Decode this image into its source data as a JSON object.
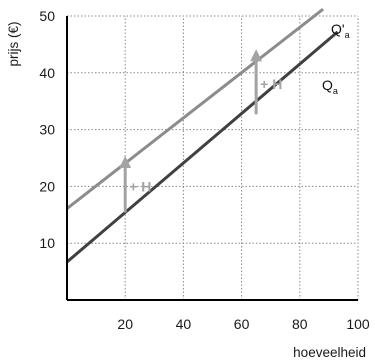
{
  "chart_data": {
    "type": "line",
    "xlabel": "hoeveelheid",
    "ylabel": "prijs (€)",
    "xlim": [
      0,
      100
    ],
    "ylim": [
      0,
      50
    ],
    "x_ticks": [
      20,
      40,
      60,
      80,
      100
    ],
    "y_ticks": [
      10,
      20,
      30,
      40,
      50
    ],
    "grid": "dotted horizontal and vertical",
    "series": [
      {
        "name": "Qa",
        "label_main": "Q",
        "label_sub": "a",
        "x": [
          0,
          93
        ],
        "y": [
          6.7,
          47.2
        ],
        "color": "#404040"
      },
      {
        "name": "Q'a",
        "label_main": "Q'",
        "label_sub": "a",
        "x": [
          0,
          88
        ],
        "y": [
          16.1,
          51.2
        ],
        "color": "#8c8c8c"
      }
    ],
    "annotations": [
      {
        "text": "+ H",
        "x": 20,
        "y_from": 15.4,
        "y_to": 24.5,
        "color": "#a3a3a3"
      },
      {
        "text": "+ H",
        "x": 65,
        "y_from": 32.7,
        "y_to": 43.3,
        "color": "#a3a3a3"
      }
    ]
  }
}
